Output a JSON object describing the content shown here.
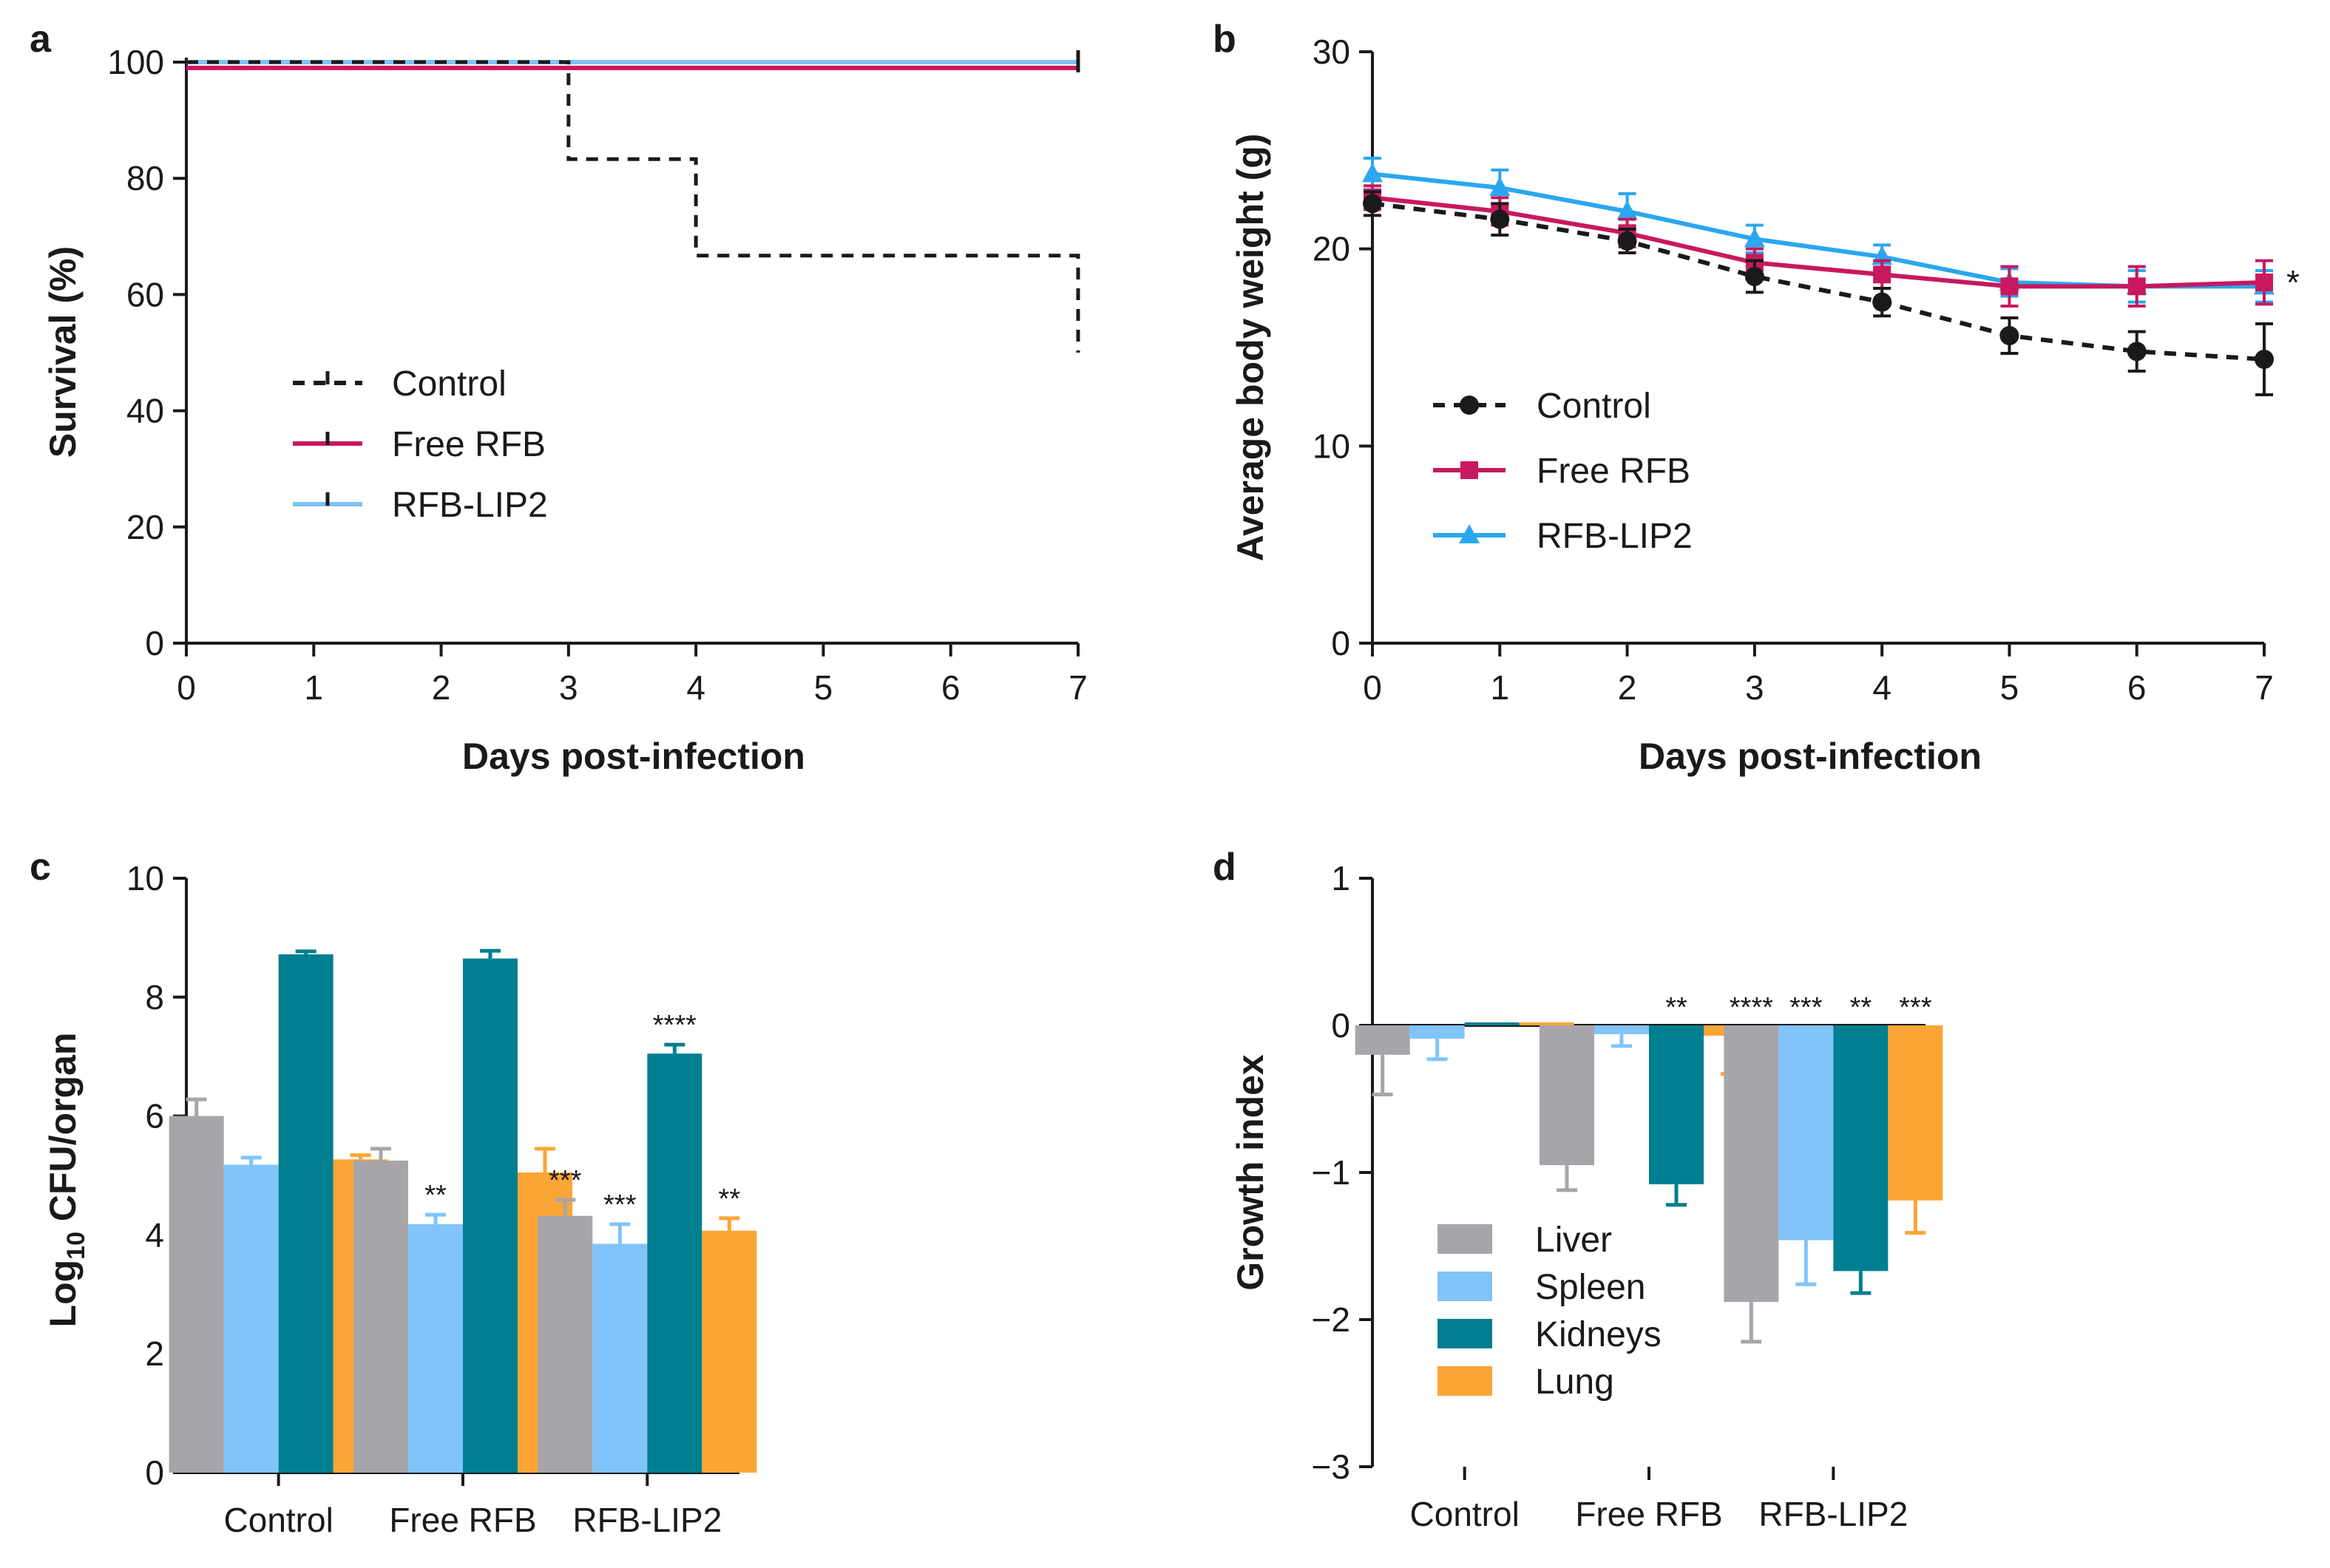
{
  "figure": {
    "panels": [
      "a",
      "b",
      "c",
      "d"
    ]
  },
  "chart_data": [
    {
      "panel": "a",
      "type": "line",
      "subtype": "survival-step",
      "xlabel": "Days post-infection",
      "ylabel": "Survival (%)",
      "xlim": [
        0,
        7
      ],
      "ylim": [
        0,
        100
      ],
      "xticks": [
        "0",
        "1",
        "2",
        "3",
        "4",
        "5",
        "6",
        "7"
      ],
      "yticks": [
        "0",
        "20",
        "40",
        "60",
        "80",
        "100"
      ],
      "legend_position": "center-left",
      "series": [
        {
          "name": "Control",
          "color": "#1a1a1a",
          "dash": "dashed",
          "steps": [
            [
              0,
              100
            ],
            [
              3,
              100
            ],
            [
              3,
              83.3
            ],
            [
              4,
              83.3
            ],
            [
              4,
              66.7
            ],
            [
              7,
              66.7
            ],
            [
              7,
              50
            ]
          ]
        },
        {
          "name": "Free RFB",
          "color": "#c8185f",
          "dash": "solid",
          "steps": [
            [
              0,
              99
            ],
            [
              7,
              99
            ]
          ]
        },
        {
          "name": "RFB-LIP2",
          "color": "#7ec3f5",
          "dash": "solid",
          "steps": [
            [
              0,
              100
            ],
            [
              7,
              100
            ]
          ]
        }
      ]
    },
    {
      "panel": "b",
      "type": "line",
      "xlabel": "Days post-infection",
      "ylabel": "Average body weight (g)",
      "xlim": [
        0,
        7
      ],
      "ylim": [
        0,
        30
      ],
      "x": [
        0,
        1,
        2,
        3,
        4,
        5,
        6,
        7
      ],
      "xticks": [
        "0",
        "1",
        "2",
        "3",
        "4",
        "5",
        "6",
        "7"
      ],
      "yticks": [
        "0",
        "10",
        "20",
        "30"
      ],
      "legend_position": "center-left",
      "annotation": "*",
      "series": [
        {
          "name": "Control",
          "color": "#1a1a1a",
          "marker": "circle",
          "dash": "dashed",
          "values": [
            22.3,
            21.5,
            20.4,
            18.6,
            17.3,
            15.6,
            14.8,
            14.4
          ],
          "errors": [
            0.6,
            0.8,
            0.6,
            0.8,
            0.7,
            0.9,
            1.0,
            1.8
          ]
        },
        {
          "name": "Free RFB",
          "color": "#c8185f",
          "marker": "square",
          "dash": "solid",
          "values": [
            22.6,
            21.9,
            20.8,
            19.3,
            18.7,
            18.1,
            18.1,
            18.3
          ],
          "errors": [
            0.6,
            0.7,
            0.7,
            0.7,
            0.7,
            1.0,
            1.0,
            1.1
          ]
        },
        {
          "name": "RFB-LIP2",
          "color": "#2aa7ef",
          "marker": "triangle",
          "dash": "solid",
          "values": [
            23.8,
            23.1,
            21.9,
            20.5,
            19.6,
            18.3,
            18.1,
            18.1
          ],
          "errors": [
            0.8,
            0.9,
            0.9,
            0.7,
            0.6,
            0.7,
            0.8,
            0.8
          ]
        }
      ]
    },
    {
      "panel": "c",
      "type": "bar",
      "xlabel": "",
      "ylabel_main": "Log",
      "ylabel_sub": "10",
      "ylabel_rest": " CFU/organ",
      "ylim": [
        0,
        10
      ],
      "yticks": [
        "0",
        "2",
        "4",
        "6",
        "8",
        "10"
      ],
      "categories": [
        "Control",
        "Free RFB",
        "RFB-LIP2"
      ],
      "series": [
        {
          "name": "Liver",
          "color": "#a7a5a9",
          "values": [
            6.0,
            5.25,
            4.32
          ],
          "errors": [
            0.28,
            0.2,
            0.27
          ],
          "sig": [
            "",
            "",
            "***"
          ]
        },
        {
          "name": "Spleen",
          "color": "#80c4fa",
          "values": [
            5.18,
            4.18,
            3.85
          ],
          "errors": [
            0.12,
            0.16,
            0.33
          ],
          "sig": [
            "",
            "**",
            "***"
          ]
        },
        {
          "name": "Kidneys",
          "color": "#007f91",
          "values": [
            8.72,
            8.65,
            7.05
          ],
          "errors": [
            0.05,
            0.13,
            0.15
          ],
          "sig": [
            "",
            "",
            "****"
          ]
        },
        {
          "name": "Lung",
          "color": "#fba536",
          "values": [
            5.27,
            5.05,
            4.07
          ],
          "errors": [
            0.07,
            0.4,
            0.21
          ],
          "sig": [
            "",
            "",
            "**"
          ]
        }
      ]
    },
    {
      "panel": "d",
      "type": "bar",
      "xlabel": "",
      "ylabel": "Growth index",
      "ylim": [
        -3,
        1
      ],
      "yticks": [
        "−3",
        "−2",
        "−1",
        "0",
        "1"
      ],
      "categories": [
        "Control",
        "Free RFB",
        "RFB-LIP2"
      ],
      "legend_position": "lower-left",
      "series": [
        {
          "name": "Liver",
          "color": "#a7a5a9",
          "values": [
            -0.2,
            -0.95,
            -1.88
          ],
          "errors": [
            0.27,
            0.17,
            0.27
          ],
          "sig": [
            "",
            "",
            "****"
          ]
        },
        {
          "name": "Spleen",
          "color": "#80c4fa",
          "values": [
            -0.09,
            -0.06,
            -1.46
          ],
          "errors": [
            0.14,
            0.08,
            0.3
          ],
          "sig": [
            "",
            "",
            "***"
          ]
        },
        {
          "name": "Kidneys",
          "color": "#007f91",
          "values": [
            0.02,
            -1.08,
            -1.67
          ],
          "errors": [
            0.0,
            0.14,
            0.15
          ],
          "sig": [
            "",
            "**",
            "**"
          ]
        },
        {
          "name": "Lung",
          "color": "#fba536",
          "values": [
            0.02,
            -0.07,
            -1.19
          ],
          "errors": [
            0.0,
            0.26,
            0.22
          ],
          "sig": [
            "",
            "",
            "***"
          ]
        }
      ]
    }
  ]
}
